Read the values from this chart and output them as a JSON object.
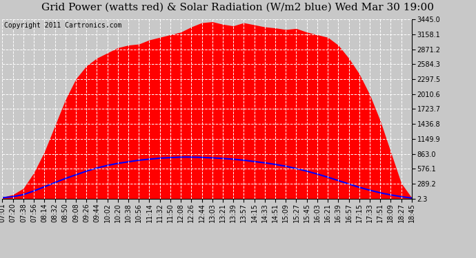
{
  "title": "Grid Power (watts red) & Solar Radiation (W/m2 blue) Wed Mar 30 19:00",
  "copyright": "Copyright 2011 Cartronics.com",
  "yticks": [
    2.3,
    289.2,
    576.1,
    863.0,
    1149.9,
    1436.8,
    1723.7,
    2010.6,
    2297.5,
    2584.3,
    2871.2,
    3158.1,
    3445.0
  ],
  "ymin": 2.3,
  "ymax": 3445.0,
  "xtick_labels": [
    "07:01",
    "07:20",
    "07:38",
    "07:56",
    "08:14",
    "08:32",
    "08:50",
    "09:08",
    "09:26",
    "09:44",
    "10:02",
    "10:20",
    "10:38",
    "10:56",
    "11:14",
    "11:32",
    "11:50",
    "12:08",
    "12:26",
    "12:44",
    "13:03",
    "13:21",
    "13:39",
    "13:57",
    "14:15",
    "14:33",
    "14:51",
    "15:09",
    "15:27",
    "15:45",
    "16:03",
    "16:21",
    "16:39",
    "16:57",
    "17:15",
    "17:33",
    "17:51",
    "18:09",
    "18:27",
    "18:45"
  ],
  "red_vals": [
    30,
    80,
    200,
    500,
    900,
    1400,
    1900,
    2300,
    2550,
    2700,
    2800,
    2900,
    2950,
    2970,
    3050,
    3100,
    3150,
    3200,
    3300,
    3380,
    3400,
    3350,
    3320,
    3380,
    3340,
    3300,
    3280,
    3250,
    3270,
    3200,
    3150,
    3100,
    2950,
    2700,
    2400,
    2000,
    1500,
    900,
    300,
    20
  ],
  "blue_vals": [
    20,
    40,
    80,
    150,
    230,
    310,
    390,
    460,
    530,
    590,
    640,
    680,
    710,
    740,
    760,
    780,
    790,
    800,
    800,
    795,
    785,
    775,
    760,
    740,
    715,
    690,
    660,
    625,
    580,
    530,
    475,
    415,
    350,
    285,
    220,
    165,
    115,
    75,
    40,
    15
  ],
  "bg_color": "#c8c8c8",
  "plot_bg_color": "#c8c8c8",
  "grid_color": "white",
  "title_fontsize": 11,
  "copyright_fontsize": 7,
  "tick_fontsize": 7,
  "red_color": "red",
  "blue_color": "blue"
}
